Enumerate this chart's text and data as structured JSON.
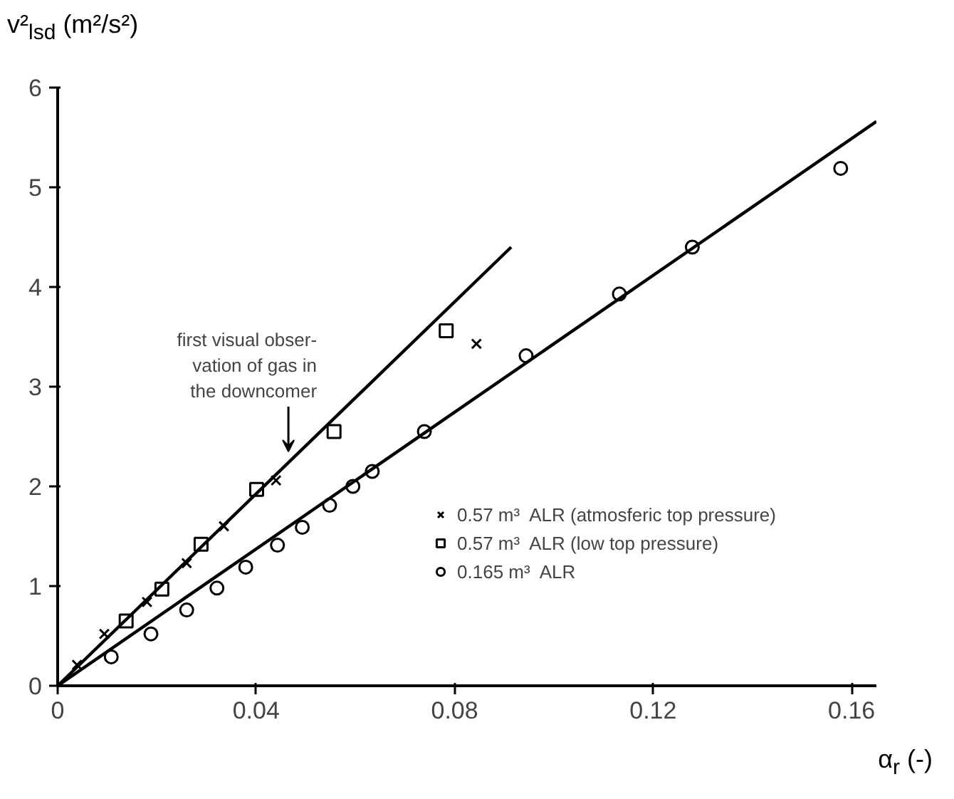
{
  "chart_data": {
    "type": "scatter",
    "xlabel": "α$_{r}$ (-)",
    "ylabel": "v²$_{lsd}$ (m²/s²)",
    "xlim": [
      0,
      0.165
    ],
    "ylim": [
      0,
      6
    ],
    "xticks": [
      0,
      0.04,
      0.08,
      0.12,
      0.16
    ],
    "yticks": [
      0,
      1,
      2,
      3,
      4,
      5,
      6
    ],
    "grid": false,
    "legend": "bottom right",
    "series": [
      {
        "name": "0.57 m³  ALR (atmosferic top pressure)",
        "marker": "cross",
        "color": "#000000",
        "x": [
          0.0039,
          0.0094,
          0.018,
          0.026,
          0.0335,
          0.044,
          0.0844
        ],
        "values": [
          0.21,
          0.52,
          0.84,
          1.23,
          1.6,
          2.06,
          3.43
        ]
      },
      {
        "name": "0.57 m³  ALR (low top pressure)",
        "marker": "square",
        "color": "#000000",
        "x": [
          0.0138,
          0.021,
          0.0289,
          0.0401,
          0.0557,
          0.0783
        ],
        "values": [
          0.65,
          0.97,
          1.42,
          1.97,
          2.55,
          3.56
        ]
      },
      {
        "name": "0.165 m³  ALR",
        "marker": "circle",
        "color": "#000000",
        "x": [
          0.0108,
          0.0188,
          0.026,
          0.0321,
          0.0379,
          0.0443,
          0.0493,
          0.0548,
          0.0595,
          0.0634,
          0.0739,
          0.0944,
          0.1132,
          0.1279,
          0.1578
        ],
        "values": [
          0.29,
          0.52,
          0.76,
          0.98,
          1.19,
          1.41,
          1.59,
          1.81,
          2.0,
          2.15,
          2.55,
          3.31,
          3.93,
          4.4,
          5.19
        ]
      },
      {
        "type": "line",
        "line_style": "solid",
        "color": "#000000",
        "x": [
          0,
          0.0914
        ],
        "values": [
          0,
          4.4
        ]
      },
      {
        "type": "line",
        "line_style": "solid",
        "color": "#000000",
        "x": [
          0,
          0.165
        ],
        "values": [
          0,
          5.66
        ]
      }
    ],
    "annotations": [
      {
        "text": "first visual obser-\nvation of gas in\nthe downcomer",
        "x": 0.0465,
        "y": 2.35
      }
    ]
  }
}
